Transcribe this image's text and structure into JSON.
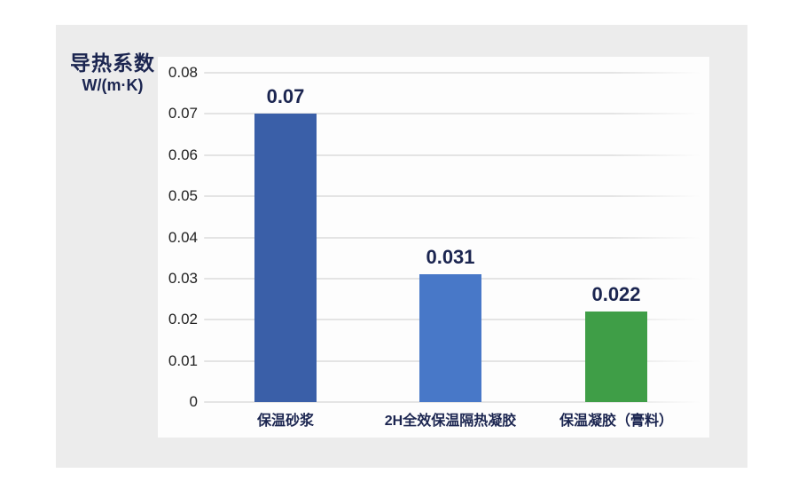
{
  "panel": {
    "title_line1": "导热系数",
    "title_line2": "W/(m·K)"
  },
  "chart_data": {
    "type": "bar",
    "title": "导热系数 W/(m·K)",
    "ylabel": "导热系数 W/(m·K)",
    "xlabel": "",
    "categories": [
      "保温砂浆",
      "2H全效保温隔热凝胶",
      "保温凝胶（膏料）"
    ],
    "values": [
      0.07,
      0.031,
      0.022
    ],
    "value_labels": [
      "0.07",
      "0.031",
      "0.022"
    ],
    "ylim": [
      0,
      0.08
    ],
    "ytick_step": 0.01,
    "ytick_labels": [
      "0",
      "0.01",
      "0.02",
      "0.03",
      "0.04",
      "0.05",
      "0.06",
      "0.07",
      "0.08"
    ],
    "grid": true,
    "legend": false
  },
  "colors": {
    "bar_colors": [
      "#3a5fa8",
      "#4878c8",
      "#3f9e47"
    ],
    "value_label_text": "#1b2550",
    "category_label_text": "#1b2550",
    "axis_title_text": "#1b2550",
    "tick_label_text": "#222222",
    "page_bg": "#ffffff",
    "panel_bg": "#ececec",
    "plot_bg": "#fdfdfd",
    "gridline": "#e4e4e4"
  }
}
